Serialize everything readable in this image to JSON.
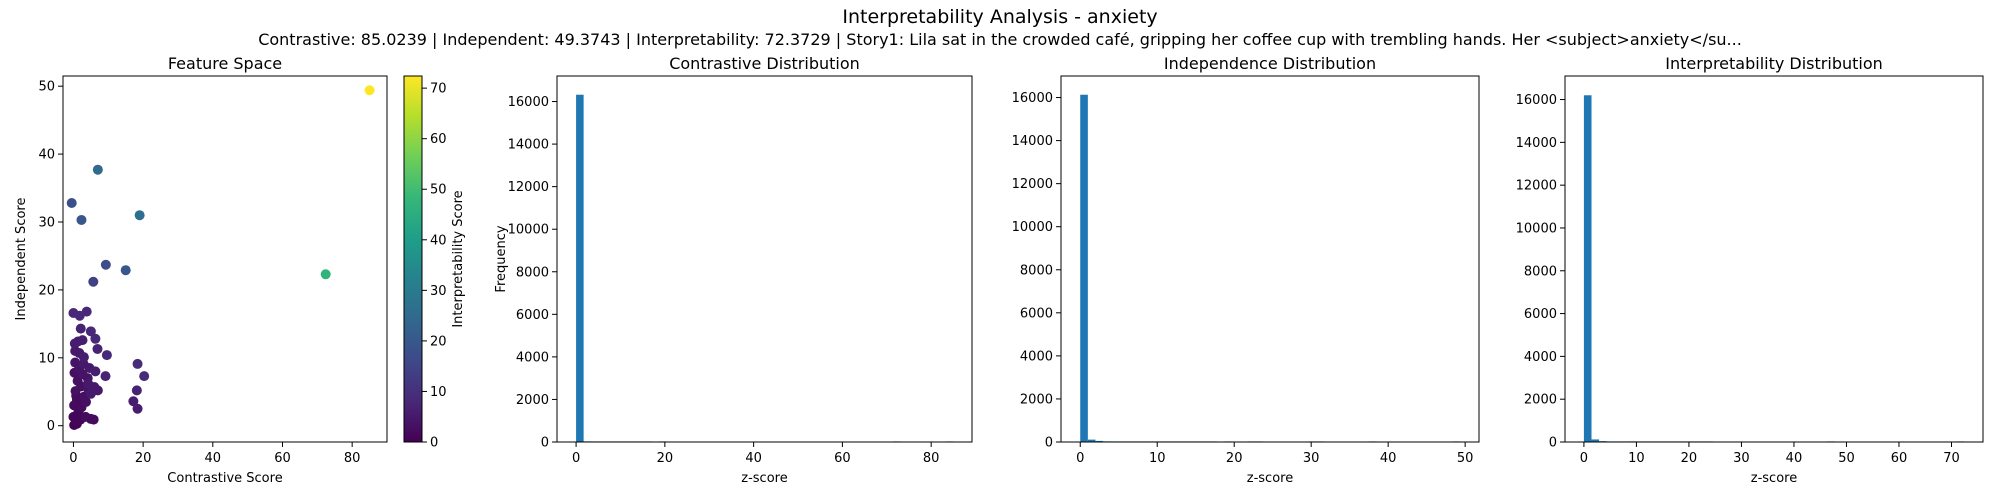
{
  "figure": {
    "suptitle": "Interpretability Analysis - anxiety",
    "subtitle": "Contrastive: 85.0239 | Independent: 49.3743 | Interpretability: 72.3729 | Story1: Lila sat in the crowded café, gripping her coffee cup with trembling hands. Her <subject>anxiety</su..."
  },
  "colors": {
    "bar": "#1f77b4",
    "viridis": [
      "#440154",
      "#482878",
      "#3e4989",
      "#31688e",
      "#26828e",
      "#1f9e89",
      "#35b779",
      "#6ece58",
      "#b5de2b",
      "#fde725"
    ]
  },
  "chart_data": [
    {
      "type": "scatter",
      "title": "Feature Space",
      "xlabel": "Contrastive Score",
      "ylabel": "Independent Score",
      "xlim": [
        -3,
        90
      ],
      "ylim": [
        -2.4,
        51.5
      ],
      "xticks": [
        0,
        20,
        40,
        60,
        80
      ],
      "yticks": [
        0,
        10,
        20,
        30,
        40,
        50
      ],
      "colorbar": {
        "label": "Interpretability Score",
        "range": [
          0,
          72.4
        ],
        "ticks": [
          0,
          10,
          20,
          30,
          40,
          50,
          60,
          70
        ]
      },
      "points": [
        [
          85.0,
          49.4,
          72.4
        ],
        [
          72.4,
          22.3,
          47.0
        ],
        [
          7.0,
          37.7,
          25.0
        ],
        [
          19.0,
          31.0,
          26.0
        ],
        [
          -0.5,
          32.8,
          18.0
        ],
        [
          2.3,
          30.3,
          20.0
        ],
        [
          9.3,
          23.7,
          17.0
        ],
        [
          15.0,
          22.9,
          20.0
        ],
        [
          5.7,
          21.2,
          14.0
        ],
        [
          0.0,
          16.6,
          8.0
        ],
        [
          1.8,
          16.2,
          8.0
        ],
        [
          3.8,
          16.8,
          8.0
        ],
        [
          2.1,
          14.3,
          7.0
        ],
        [
          1.3,
          12.4,
          6.0
        ],
        [
          5.0,
          13.9,
          8.0
        ],
        [
          6.3,
          12.8,
          8.0
        ],
        [
          6.9,
          11.3,
          7.0
        ],
        [
          9.6,
          10.4,
          8.0
        ],
        [
          0.5,
          11.0,
          5.0
        ],
        [
          3.0,
          10.1,
          6.0
        ],
        [
          18.4,
          9.1,
          9.0
        ],
        [
          20.3,
          7.3,
          9.0
        ],
        [
          9.2,
          7.3,
          7.0
        ],
        [
          6.3,
          8.0,
          6.0
        ],
        [
          18.2,
          5.2,
          7.0
        ],
        [
          17.2,
          3.6,
          6.0
        ],
        [
          18.4,
          2.5,
          6.0
        ],
        [
          4.2,
          6.2,
          5.0
        ],
        [
          7.0,
          5.2,
          5.0
        ],
        [
          5.0,
          4.7,
          5.0
        ],
        [
          0.5,
          9.3,
          4.0
        ],
        [
          1.6,
          8.4,
          4.0
        ],
        [
          2.6,
          7.6,
          4.0
        ],
        [
          0.3,
          7.8,
          3.0
        ],
        [
          1.2,
          6.6,
          3.0
        ],
        [
          2.2,
          5.8,
          3.0
        ],
        [
          0.6,
          5.1,
          3.0
        ],
        [
          3.1,
          4.3,
          3.0
        ],
        [
          1.0,
          3.8,
          2.0
        ],
        [
          0.2,
          3.0,
          2.0
        ],
        [
          2.3,
          2.7,
          2.0
        ],
        [
          1.4,
          2.0,
          1.0
        ],
        [
          0.0,
          1.3,
          1.0
        ],
        [
          0.8,
          0.7,
          1.0
        ],
        [
          2.0,
          0.9,
          1.0
        ],
        [
          3.5,
          1.3,
          2.0
        ],
        [
          5.0,
          1.0,
          2.0
        ],
        [
          5.8,
          0.9,
          2.0
        ],
        [
          0.2,
          0.1,
          0.5
        ],
        [
          1.0,
          0.3,
          0.5
        ],
        [
          4.2,
          5.5,
          4.0
        ],
        [
          3.6,
          3.5,
          3.0
        ],
        [
          1.7,
          10.7,
          5.0
        ],
        [
          2.9,
          9.1,
          5.0
        ],
        [
          4.6,
          8.5,
          5.0
        ],
        [
          4.1,
          7.0,
          4.0
        ],
        [
          6.0,
          5.7,
          5.0
        ],
        [
          0.4,
          12.1,
          6.0
        ],
        [
          2.6,
          12.6,
          6.0
        ],
        [
          0.8,
          4.4,
          2.0
        ]
      ]
    },
    {
      "type": "bar",
      "title": "Contrastive Distribution",
      "xlabel": "z-score",
      "ylabel": "Frequency",
      "xlim": [
        -4.3,
        89.2
      ],
      "ylim": [
        0,
        17200
      ],
      "xticks": [
        0,
        20,
        40,
        60,
        80
      ],
      "yticks": [
        0,
        2000,
        4000,
        6000,
        8000,
        10000,
        12000,
        14000,
        16000
      ],
      "bin_start": 0,
      "bin_width": 1.7005,
      "counts": [
        16320,
        30,
        8,
        5,
        3,
        2,
        2,
        1,
        1,
        1,
        0,
        1,
        0,
        0,
        0,
        0,
        0,
        0,
        0,
        0,
        0,
        0,
        0,
        0,
        0,
        0,
        0,
        0,
        0,
        0,
        0,
        0,
        0,
        0,
        0,
        0,
        0,
        0,
        0,
        0,
        0,
        0,
        1,
        0,
        0,
        0,
        0,
        0,
        0,
        1
      ]
    },
    {
      "type": "bar",
      "title": "Independence Distribution",
      "xlabel": "z-score",
      "ylabel": "",
      "xlim": [
        -2.5,
        51.8
      ],
      "ylim": [
        0,
        17000
      ],
      "xticks": [
        0,
        10,
        20,
        30,
        40,
        50
      ],
      "yticks": [
        0,
        2000,
        4000,
        6000,
        8000,
        10000,
        12000,
        14000,
        16000
      ],
      "bin_start": 0,
      "bin_width": 0.9875,
      "counts": [
        16130,
        110,
        50,
        30,
        20,
        15,
        10,
        10,
        8,
        6,
        5,
        4,
        3,
        2,
        2,
        1,
        1,
        1,
        0,
        1,
        0,
        0,
        1,
        1,
        0,
        0,
        0,
        0,
        0,
        0,
        1,
        1,
        0,
        0,
        0,
        0,
        0,
        0,
        1,
        0,
        0,
        0,
        0,
        0,
        0,
        0,
        0,
        0,
        0,
        1
      ]
    },
    {
      "type": "bar",
      "title": "Interpretability Distribution",
      "xlabel": "z-score",
      "ylabel": "",
      "xlim": [
        -3.6,
        76.0
      ],
      "ylim": [
        0,
        17100
      ],
      "xticks": [
        0,
        10,
        20,
        30,
        40,
        50,
        60,
        70
      ],
      "yticks": [
        0,
        2000,
        4000,
        6000,
        8000,
        10000,
        12000,
        14000,
        16000
      ],
      "bin_start": 0,
      "bin_width": 1.4475,
      "counts": [
        16200,
        120,
        40,
        25,
        20,
        15,
        30,
        20,
        10,
        5,
        5,
        3,
        2,
        2,
        1,
        1,
        1,
        0,
        0,
        0,
        0,
        0,
        0,
        0,
        0,
        0,
        0,
        0,
        0,
        0,
        0,
        0,
        1,
        0,
        0,
        0,
        0,
        0,
        0,
        0,
        0,
        0,
        0,
        0,
        0,
        0,
        0,
        0,
        0,
        1
      ]
    }
  ]
}
